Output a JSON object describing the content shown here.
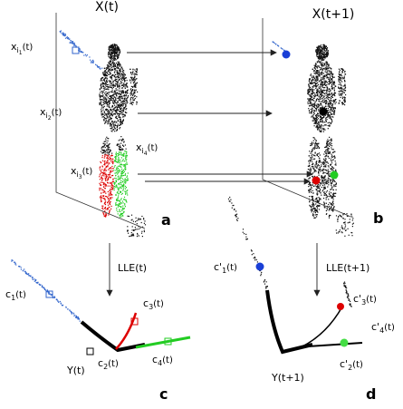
{
  "panels": {
    "a": {
      "title": "X(t)",
      "letter": "a",
      "labels": [
        {
          "base": "x",
          "sub": "i",
          "subsub": "1",
          "tail": "(t)"
        },
        {
          "base": "x",
          "sub": "i",
          "subsub": "2",
          "tail": "(t)"
        },
        {
          "base": "x",
          "sub": "i",
          "subsub": "3",
          "tail": "(t)"
        },
        {
          "base": "x",
          "sub": "i",
          "subsub": "4",
          "tail": "(t)"
        }
      ]
    },
    "b": {
      "title": "X(t+1)",
      "letter": "b"
    },
    "c": {
      "letter": "c",
      "arrow_label": "LLE(t)",
      "embedding": "Y(t)",
      "labels": [
        {
          "base": "c",
          "sub": "1",
          "tail": "(t)"
        },
        {
          "base": "c",
          "sub": "2",
          "tail": "(t)"
        },
        {
          "base": "c",
          "sub": "3",
          "tail": "(t)"
        },
        {
          "base": "c",
          "sub": "4",
          "tail": "(t)"
        }
      ]
    },
    "d": {
      "letter": "d",
      "arrow_label": "LLE(t+1)",
      "embedding": "Y(t+1)",
      "labels": [
        {
          "base": "c'",
          "sub": "1",
          "tail": "(t)"
        },
        {
          "base": "c'",
          "sub": "2",
          "tail": "(t)"
        },
        {
          "base": "c'",
          "sub": "3",
          "tail": "(t)"
        },
        {
          "base": "c'",
          "sub": "4",
          "tail": "(t)"
        }
      ]
    }
  }
}
